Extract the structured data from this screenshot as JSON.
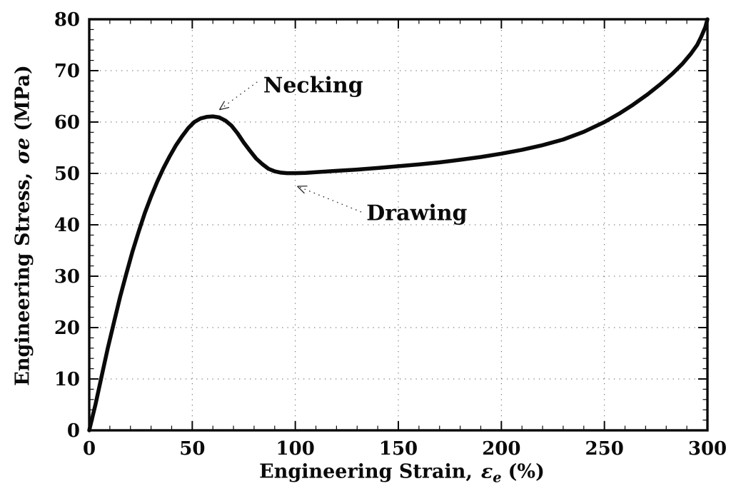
{
  "figure": {
    "background": "#ffffff",
    "ink": "#0a0a0a",
    "grid_color": "#3f3f3f"
  },
  "chart_data": {
    "type": "line",
    "title": "",
    "x_axis": {
      "label_prefix": "Engineering Strain,",
      "label_symbol": "ε",
      "label_sub": "e",
      "label_suffix": "(%)",
      "min": 0,
      "max": 300,
      "major_ticks": [
        0,
        50,
        100,
        150,
        200,
        250,
        300
      ],
      "minor_tick_step": 10,
      "grid": true
    },
    "y_axis": {
      "label_prefix": "Engineering Stress,",
      "label_symbol": "σe",
      "label_suffix": "(MPa)",
      "min": 0,
      "max": 80,
      "major_ticks": [
        0,
        10,
        20,
        30,
        40,
        50,
        60,
        70,
        80
      ],
      "minor_tick_step": 2,
      "grid": true
    },
    "grid": {
      "style": "dotted",
      "on": true
    },
    "legend": {
      "visible": false
    },
    "series": [
      {
        "name": "engineering stress-strain curve",
        "color": "#0a0a0a",
        "stroke_width": 5.5,
        "points": [
          [
            0,
            0
          ],
          [
            3,
            5
          ],
          [
            6,
            10.5
          ],
          [
            9,
            16
          ],
          [
            12,
            21
          ],
          [
            15,
            26
          ],
          [
            18,
            30.5
          ],
          [
            21,
            34.8
          ],
          [
            24,
            38.7
          ],
          [
            27,
            42.3
          ],
          [
            30,
            45.5
          ],
          [
            33,
            48.4
          ],
          [
            36,
            51
          ],
          [
            39,
            53.3
          ],
          [
            42,
            55.4
          ],
          [
            45,
            57.2
          ],
          [
            48,
            58.8
          ],
          [
            51,
            60
          ],
          [
            54,
            60.7
          ],
          [
            57,
            61.0
          ],
          [
            60,
            61.1
          ],
          [
            63,
            60.9
          ],
          [
            66,
            60.3
          ],
          [
            69,
            59.3
          ],
          [
            72,
            57.8
          ],
          [
            75,
            56
          ],
          [
            78,
            54.4
          ],
          [
            81,
            52.9
          ],
          [
            84,
            51.8
          ],
          [
            87,
            50.9
          ],
          [
            90,
            50.4
          ],
          [
            93,
            50.15
          ],
          [
            96,
            50.05
          ],
          [
            100,
            50.05
          ],
          [
            105,
            50.1
          ],
          [
            110,
            50.25
          ],
          [
            120,
            50.5
          ],
          [
            130,
            50.75
          ],
          [
            140,
            51.05
          ],
          [
            150,
            51.4
          ],
          [
            160,
            51.75
          ],
          [
            170,
            52.15
          ],
          [
            180,
            52.65
          ],
          [
            190,
            53.2
          ],
          [
            200,
            53.85
          ],
          [
            210,
            54.6
          ],
          [
            220,
            55.5
          ],
          [
            230,
            56.6
          ],
          [
            240,
            58.1
          ],
          [
            250,
            60
          ],
          [
            257,
            61.6
          ],
          [
            264,
            63.4
          ],
          [
            271,
            65.4
          ],
          [
            277,
            67.3
          ],
          [
            283,
            69.4
          ],
          [
            288,
            71.4
          ],
          [
            292,
            73.3
          ],
          [
            295,
            75
          ],
          [
            297,
            76.6
          ],
          [
            299,
            78.5
          ],
          [
            300,
            80
          ]
        ]
      }
    ],
    "annotations": [
      {
        "label": "Necking",
        "tip": [
          63.2,
          62.4
        ],
        "start": [
          81.5,
          67.8
        ],
        "text_anchor": [
          84.5,
          67.1
        ]
      },
      {
        "label": "Drawing",
        "tip": [
          101.0,
          47.5
        ],
        "start": [
          132.0,
          42.5
        ],
        "text_anchor": [
          134.5,
          42.2
        ]
      }
    ]
  }
}
